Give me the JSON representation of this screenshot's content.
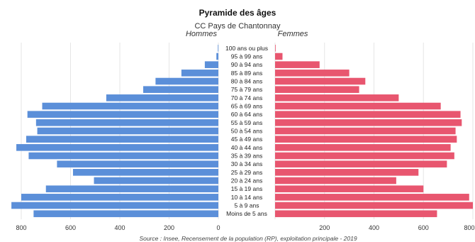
{
  "chart_data": {
    "type": "bar",
    "orientation": "horizontal-pyramid",
    "title": "Pyramide des âges",
    "subtitle": "CC Pays de Chantonnay",
    "left_label": "Hommes",
    "right_label": "Femmes",
    "source": "Source : Insee, Recensement de la population (RP), exploitation principale - 2019",
    "categories": [
      "100 ans ou plus",
      "95 à 99 ans",
      "90 à 94 ans",
      "85 à 89 ans",
      "80 à 84 ans",
      "75 à 79 ans",
      "70 à 74 ans",
      "65 à 69 ans",
      "60 à 64 ans",
      "55 à 59 ans",
      "50 à 54 ans",
      "45 à 49 ans",
      "40 à 44 ans",
      "35 à 39 ans",
      "30 à 34 ans",
      "25 à 29 ans",
      "20 à 24 ans",
      "15 à 19 ans",
      "10 à 14 ans",
      "5 à 9 ans",
      "Moins de 5 ans"
    ],
    "series": [
      {
        "name": "Hommes",
        "color": "#5b8fd9",
        "values": [
          2,
          8,
          55,
          150,
          255,
          305,
          455,
          715,
          775,
          740,
          735,
          780,
          820,
          770,
          655,
          590,
          505,
          700,
          800,
          840,
          750
        ]
      },
      {
        "name": "Femmes",
        "color": "#e8566f",
        "values": [
          2,
          30,
          180,
          300,
          365,
          340,
          500,
          670,
          750,
          755,
          730,
          735,
          710,
          725,
          695,
          580,
          490,
          600,
          785,
          800,
          655
        ]
      }
    ],
    "x_ticks_left": [
      "800",
      "600",
      "400",
      "200",
      "0"
    ],
    "x_ticks_right": [
      "200",
      "400",
      "600",
      "800"
    ],
    "xlim": [
      0,
      800
    ],
    "grid": true
  }
}
